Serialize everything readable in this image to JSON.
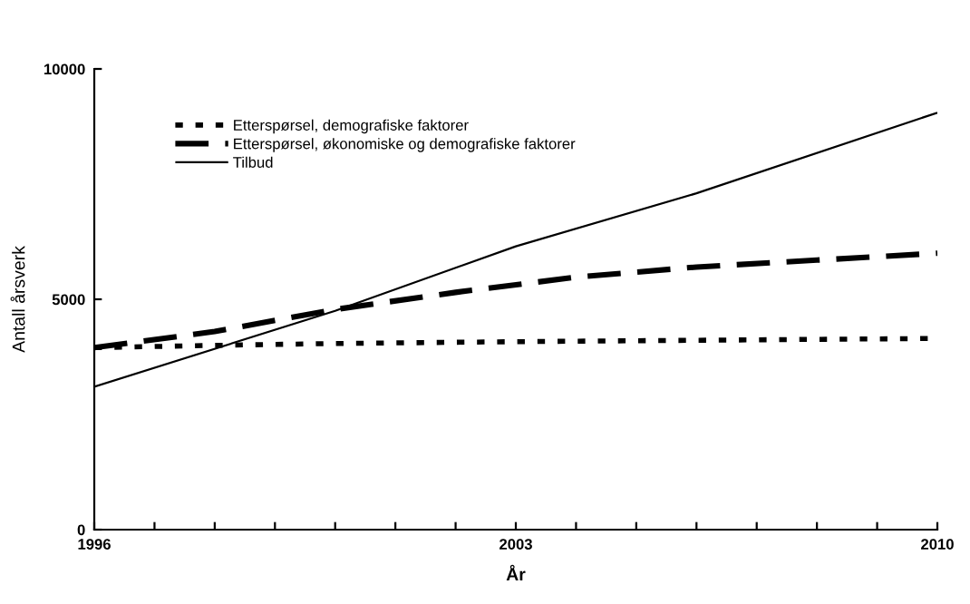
{
  "chart_data": {
    "type": "line",
    "xlabel": "År",
    "ylabel": "Antall årsverk",
    "xlim": [
      1996,
      2010
    ],
    "ylim": [
      0,
      10000
    ],
    "yticks": [
      0,
      5000,
      10000
    ],
    "xticks": [
      1996,
      {
        "value": 1997,
        "label": null
      },
      {
        "value": 1998,
        "label": null
      },
      {
        "value": 1999,
        "label": null
      },
      {
        "value": 2000,
        "label": null
      },
      {
        "value": 2001,
        "label": null
      },
      {
        "value": 2002,
        "label": null
      },
      2003,
      {
        "value": 2004,
        "label": null
      },
      {
        "value": 2005,
        "label": null
      },
      {
        "value": 2006,
        "label": null
      },
      {
        "value": 2007,
        "label": null
      },
      {
        "value": 2008,
        "label": null
      },
      {
        "value": 2009,
        "label": null
      },
      2010
    ],
    "grid": false,
    "legend": "top left",
    "marker": "none",
    "series": [
      {
        "name": "Etterspørsel, demografiske faktorer",
        "color": "#000000",
        "line_style": "dotted",
        "x": [
          1996,
          1998,
          2000,
          2003,
          2006,
          2010
        ],
        "values": [
          3950,
          4000,
          4040,
          4080,
          4110,
          4150
        ]
      },
      {
        "name": "Etterspørsel, økonomiske og demografiske faktorer",
        "color": "#000000",
        "line_style": "dashed",
        "x": [
          1996,
          1998,
          2000,
          2002,
          2004,
          2006,
          2008,
          2010
        ],
        "values": [
          3950,
          4300,
          4780,
          5150,
          5480,
          5700,
          5850,
          6000
        ]
      },
      {
        "name": "Tilbud",
        "color": "#000000",
        "line_style": "solid",
        "x": [
          1996,
          2000,
          2003,
          2006,
          2010
        ],
        "values": [
          3100,
          4750,
          6150,
          7300,
          9050
        ]
      }
    ]
  }
}
